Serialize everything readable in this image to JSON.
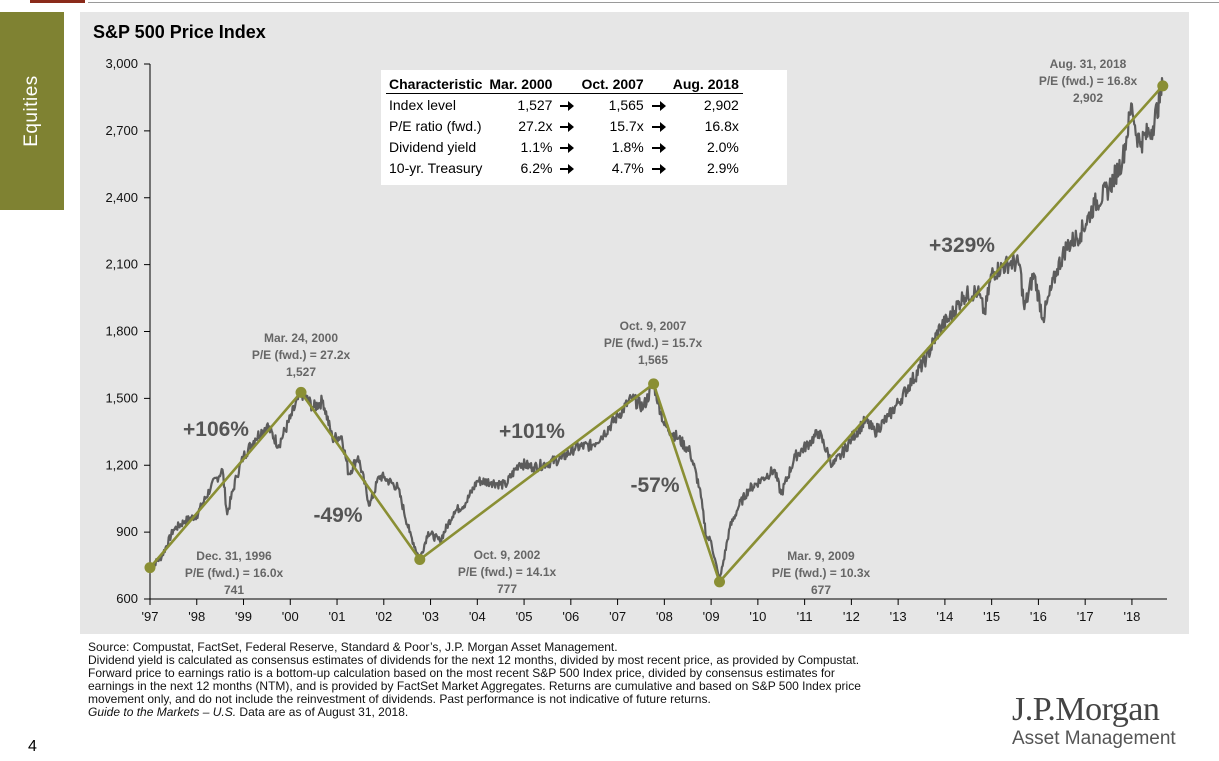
{
  "side_tab": {
    "label": "Equities"
  },
  "page_number": "4",
  "colors": {
    "accent_olive": "#8a8f34",
    "index_line": "#5c5c5c",
    "panel_bg": "#e6e6e6",
    "side_tab": "#7f8232"
  },
  "table": {
    "headers": [
      "Characteristic",
      "Mar. 2000",
      "",
      "Oct. 2007",
      "",
      "Aug. 2018"
    ],
    "rows": [
      {
        "label": "Index level",
        "v1": "1,527",
        "v2": "1,565",
        "v3": "2,902"
      },
      {
        "label": "P/E ratio (fwd.)",
        "v1": "27.2x",
        "v2": "15.7x",
        "v3": "16.8x"
      },
      {
        "label": "Dividend yield",
        "v1": "1.1%",
        "v2": "1.8%",
        "v3": "2.0%"
      },
      {
        "label": "10-yr. Treasury",
        "v1": "6.2%",
        "v2": "4.7%",
        "v3": "2.9%"
      }
    ]
  },
  "chart_data": {
    "type": "line",
    "title": "S&P 500 Price Index",
    "xlabel": "",
    "ylabel": "",
    "ylim": [
      600,
      3000
    ],
    "xlim": [
      1997,
      2018.75
    ],
    "grid": false,
    "y_ticks": [
      "600",
      "900",
      "1,200",
      "1,500",
      "1,800",
      "2,100",
      "2,400",
      "2,700",
      "3,000"
    ],
    "y_tick_values": [
      600,
      900,
      1200,
      1500,
      1800,
      2100,
      2400,
      2700,
      3000
    ],
    "x_ticks": [
      "'97",
      "'98",
      "'99",
      "'00",
      "'01",
      "'02",
      "'03",
      "'04",
      "'05",
      "'06",
      "'07",
      "'08",
      "'09",
      "'10",
      "'11",
      "'12",
      "'13",
      "'14",
      "'15",
      "'16",
      "'17",
      "'18"
    ],
    "series": [
      {
        "values_x": [
          1997.0,
          1997.25,
          1997.5,
          1997.75,
          1998.0,
          1998.3,
          1998.55,
          1998.65,
          1998.85,
          1999.0,
          1999.25,
          1999.5,
          1999.75,
          2000.0,
          2000.23,
          2000.5,
          2000.7,
          2000.9,
          2001.1,
          2001.25,
          2001.45,
          2001.7,
          2001.9,
          2002.0,
          2002.3,
          2002.55,
          2002.77,
          2002.95,
          2003.2,
          2003.5,
          2003.75,
          2004.0,
          2004.3,
          2004.6,
          2004.9,
          2005.2,
          2005.5,
          2005.8,
          2006.1,
          2006.45,
          2006.7,
          2007.0,
          2007.3,
          2007.55,
          2007.77,
          2008.0,
          2008.3,
          2008.55,
          2008.75,
          2008.9,
          2009.0,
          2009.18,
          2009.4,
          2009.6,
          2009.8,
          2010.1,
          2010.35,
          2010.5,
          2010.8,
          2011.1,
          2011.3,
          2011.6,
          2011.8,
          2012.0,
          2012.3,
          2012.5,
          2012.8,
          2013.0,
          2013.3,
          2013.6,
          2013.9,
          2014.1,
          2014.4,
          2014.7,
          2014.85,
          2015.0,
          2015.4,
          2015.6,
          2015.7,
          2015.9,
          2016.1,
          2016.4,
          2016.6,
          2016.9,
          2017.2,
          2017.5,
          2017.8,
          2018.0,
          2018.1,
          2018.2,
          2018.45,
          2018.66
        ],
        "values_y": [
          741,
          790,
          910,
          950,
          975,
          1100,
          1180,
          980,
          1150,
          1240,
          1320,
          1380,
          1290,
          1410,
          1527,
          1460,
          1490,
          1320,
          1330,
          1160,
          1240,
          1020,
          1150,
          1145,
          1100,
          900,
          777,
          900,
          860,
          990,
          1030,
          1130,
          1125,
          1110,
          1210,
          1190,
          1210,
          1230,
          1280,
          1290,
          1340,
          1420,
          1500,
          1460,
          1565,
          1380,
          1320,
          1260,
          1100,
          880,
          860,
          677,
          920,
          1020,
          1090,
          1140,
          1180,
          1070,
          1240,
          1300,
          1350,
          1200,
          1250,
          1320,
          1400,
          1350,
          1420,
          1480,
          1580,
          1680,
          1820,
          1860,
          1960,
          1980,
          1880,
          2060,
          2110,
          2100,
          1900,
          2060,
          1860,
          2080,
          2180,
          2240,
          2370,
          2440,
          2570,
          2820,
          2680,
          2650,
          2720,
          2902
        ]
      },
      {
        "values_x": [
          1997.0,
          2000.23,
          2002.77,
          2007.77,
          2009.18,
          2018.66
        ],
        "values_y": [
          741,
          1527,
          777,
          1565,
          677,
          2902
        ]
      }
    ],
    "annotations": [
      {
        "lines": [
          "Dec. 31, 1996",
          "P/E (fwd.) = 16.0x",
          "741"
        ]
      },
      {
        "lines": [
          "Mar. 24, 2000",
          "P/E (fwd.) = 27.2x",
          "1,527"
        ]
      },
      {
        "lines": [
          "Oct. 9, 2002",
          "P/E (fwd.) = 14.1x",
          "777"
        ]
      },
      {
        "lines": [
          "Oct. 9, 2007",
          "P/E (fwd.) = 15.7x",
          "1,565"
        ]
      },
      {
        "lines": [
          "Mar. 9, 2009",
          "P/E (fwd.) = 10.3x",
          "677"
        ]
      },
      {
        "lines": [
          "Aug. 31, 2018",
          "P/E (fwd.) = 16.8x",
          "2,902"
        ]
      }
    ],
    "moves": [
      "+106%",
      "-49%",
      "+101%",
      "-57%",
      "+329%"
    ]
  },
  "footnote": {
    "lines": [
      "Source: Compustat, FactSet, Federal Reserve, Standard & Poor’s, J.P. Morgan Asset Management.",
      "Dividend yield is calculated as consensus estimates of dividends for the next 12 months, divided by most recent price, as provided by Compustat.",
      "Forward price to earnings ratio is a bottom-up calculation based on the most recent S&P 500 Index price, divided by consensus estimates for",
      "earnings in the next 12 months (NTM), and is provided by FactSet Market Aggregates. Returns are cumulative and based on S&P 500 Index price",
      "movement only, and do not include the reinvestment of dividends. Past performance is not indicative of future returns."
    ],
    "guide_title": "Guide to the Markets – U.S.",
    "guide_rest": " Data are as of August 31, 2018."
  },
  "logo": {
    "brand": "J.P.Morgan",
    "sub": "Asset Management"
  }
}
